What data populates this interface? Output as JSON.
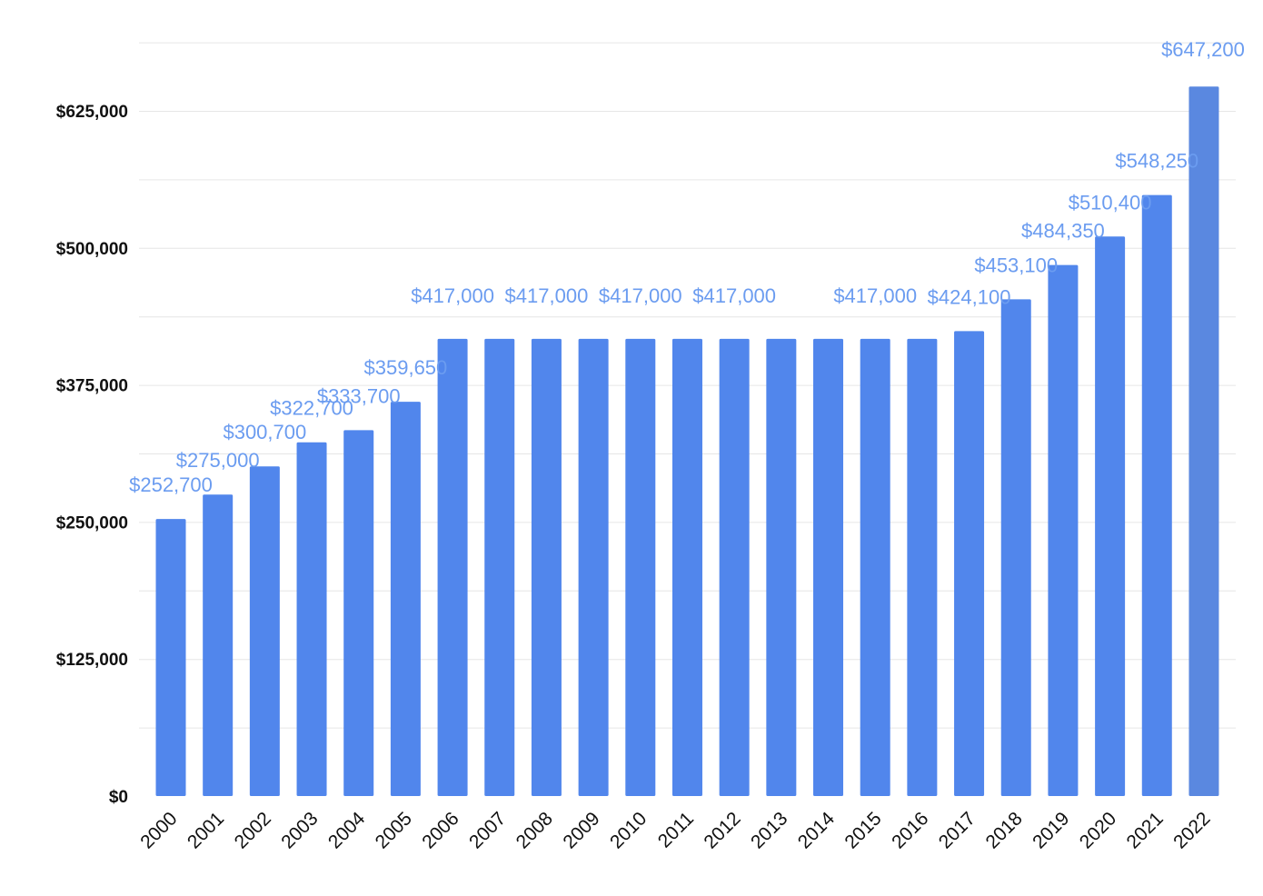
{
  "chart_data": {
    "type": "bar",
    "title": "",
    "xlabel": "",
    "ylabel": "",
    "ylim": [
      0,
      725000
    ],
    "grid": true,
    "legend": "none",
    "colors": {
      "bar": "#5186ec",
      "last_bar": "#5a88e0",
      "data_label": "#6b9cf0"
    },
    "yticks": [
      {
        "value": 0,
        "label": "$0"
      },
      {
        "value": 125000,
        "label": "$125,000"
      },
      {
        "value": 250000,
        "label": "$250,000"
      },
      {
        "value": 375000,
        "label": "$375,000"
      },
      {
        "value": 500000,
        "label": "$500,000"
      },
      {
        "value": 625000,
        "label": "$625,000"
      }
    ],
    "categories": [
      "2000",
      "2001",
      "2002",
      "2003",
      "2004",
      "2005",
      "2006",
      "2007",
      "2008",
      "2009",
      "2010",
      "2011",
      "2012",
      "2013",
      "2014",
      "2015",
      "2016",
      "2017",
      "2018",
      "2019",
      "2020",
      "2021",
      "2022"
    ],
    "values": [
      252700,
      275000,
      300700,
      322700,
      333700,
      359650,
      417000,
      417000,
      417000,
      417000,
      417000,
      417000,
      417000,
      417000,
      417000,
      417000,
      417000,
      424100,
      453100,
      484350,
      510400,
      548250,
      647200
    ],
    "data_labels": [
      {
        "category": "2000",
        "label": "$252,700"
      },
      {
        "category": "2001",
        "label": "$275,000"
      },
      {
        "category": "2002",
        "label": "$300,700"
      },
      {
        "category": "2003",
        "label": "$322,700"
      },
      {
        "category": "2004",
        "label": "$333,700"
      },
      {
        "category": "2005",
        "label": "$359,650"
      },
      {
        "category": "2006",
        "label": "$417,000"
      },
      {
        "category": "2008",
        "label": "$417,000"
      },
      {
        "category": "2010",
        "label": "$417,000"
      },
      {
        "category": "2012",
        "label": "$417,000"
      },
      {
        "category": "2015",
        "label": "$417,000"
      },
      {
        "category": "2017",
        "label": "$424,100"
      },
      {
        "category": "2018",
        "label": "$453,100"
      },
      {
        "category": "2019",
        "label": "$484,350"
      },
      {
        "category": "2020",
        "label": "$510,400"
      },
      {
        "category": "2021",
        "label": "$548,250"
      },
      {
        "category": "2022",
        "label": "$647,200"
      }
    ]
  }
}
